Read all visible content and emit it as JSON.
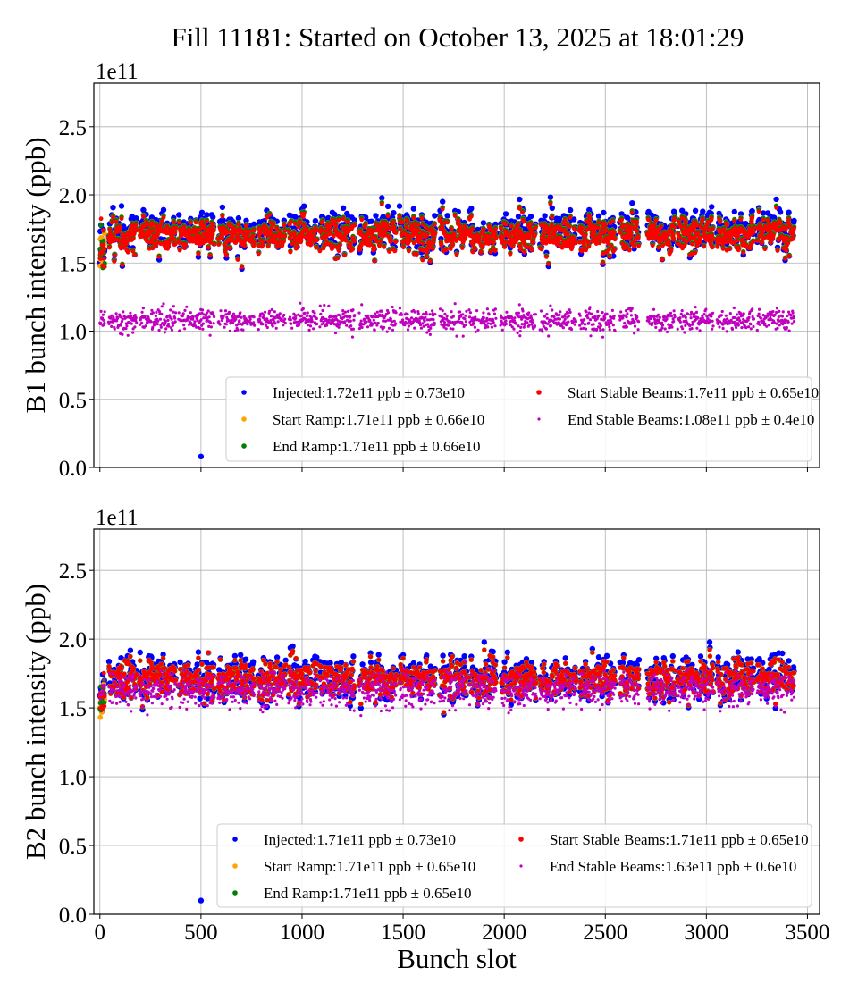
{
  "title": "Fill 11181: Started on October 13, 2025 at 18:01:29",
  "chart_data": [
    {
      "type": "scatter",
      "ylabel": "B1 bunch intensity (ppb)",
      "xlabel": "",
      "y_multiplier": "1e11",
      "xlim": [
        -30,
        3560
      ],
      "ylim": [
        0,
        2.82
      ],
      "xticks": [
        0,
        500,
        1000,
        1500,
        2000,
        2500,
        3000,
        3500
      ],
      "yticks": [
        "0.0",
        "0.5",
        "1.0",
        "1.5",
        "2.0",
        "2.5"
      ],
      "grid": true,
      "legend_placement": "lower-right",
      "filled_slot_ranges": [
        [
          0,
          25
        ],
        [
          43,
          182
        ],
        [
          195,
          375
        ],
        [
          389,
          566
        ],
        [
          584,
          765
        ],
        [
          783,
          920
        ],
        [
          934,
          1075
        ],
        [
          1088,
          1261
        ],
        [
          1283,
          1465
        ],
        [
          1482,
          1659
        ],
        [
          1681,
          1814
        ],
        [
          1827,
          1960
        ],
        [
          1982,
          2159
        ],
        [
          2177,
          2358
        ],
        [
          2372,
          2549
        ],
        [
          2571,
          2668
        ],
        [
          2708,
          2845
        ],
        [
          2858,
          3035
        ],
        [
          3053,
          3235
        ],
        [
          3252,
          3434
        ]
      ],
      "outliers": [
        {
          "series": "Injected",
          "x": 500,
          "y": 0.08
        }
      ],
      "series": [
        {
          "name": "Injected",
          "label": "Injected:1.72e11 ppb ± 0.73e10",
          "mean": 1.72,
          "std": 0.073,
          "color": "#0000ff"
        },
        {
          "name": "Start Ramp",
          "label": "Start Ramp:1.71e11 ppb ± 0.66e10",
          "mean": 1.71,
          "std": 0.066,
          "color": "#ffa500"
        },
        {
          "name": "End Ramp",
          "label": "End Ramp:1.71e11 ppb ± 0.66e10",
          "mean": 1.71,
          "std": 0.066,
          "color": "#008000"
        },
        {
          "name": "Start Stable Beams",
          "label": "Start Stable Beams:1.7e11 ppb ± 0.65e10",
          "mean": 1.7,
          "std": 0.065,
          "color": "#ff0000"
        },
        {
          "name": "End Stable Beams",
          "label": "End Stable Beams:1.08e11 ppb ± 0.4e10",
          "mean": 1.08,
          "std": 0.04,
          "color": "#bf00bf"
        }
      ]
    },
    {
      "type": "scatter",
      "ylabel": "B2 bunch intensity (ppb)",
      "xlabel": "Bunch slot",
      "y_multiplier": "1e11",
      "xlim": [
        -30,
        3560
      ],
      "ylim": [
        0,
        2.8
      ],
      "xticks": [
        0,
        500,
        1000,
        1500,
        2000,
        2500,
        3000,
        3500
      ],
      "yticks": [
        "0.0",
        "0.5",
        "1.0",
        "1.5",
        "2.0",
        "2.5"
      ],
      "grid": true,
      "legend_placement": "lower-right",
      "filled_slot_ranges": [
        [
          0,
          25
        ],
        [
          43,
          182
        ],
        [
          195,
          375
        ],
        [
          389,
          566
        ],
        [
          584,
          765
        ],
        [
          783,
          920
        ],
        [
          934,
          1075
        ],
        [
          1088,
          1261
        ],
        [
          1283,
          1465
        ],
        [
          1482,
          1659
        ],
        [
          1681,
          1814
        ],
        [
          1827,
          1960
        ],
        [
          1982,
          2159
        ],
        [
          2177,
          2358
        ],
        [
          2372,
          2549
        ],
        [
          2571,
          2668
        ],
        [
          2708,
          2845
        ],
        [
          2858,
          3035
        ],
        [
          3053,
          3235
        ],
        [
          3252,
          3434
        ]
      ],
      "outliers": [
        {
          "series": "Injected",
          "x": 500,
          "y": 0.1
        }
      ],
      "series": [
        {
          "name": "Injected",
          "label": "Injected:1.71e11 ppb ± 0.73e10",
          "mean": 1.71,
          "std": 0.073,
          "color": "#0000ff"
        },
        {
          "name": "Start Ramp",
          "label": "Start Ramp:1.71e11 ppb ± 0.65e10",
          "mean": 1.71,
          "std": 0.065,
          "color": "#ffa500"
        },
        {
          "name": "End Ramp",
          "label": "End Ramp:1.71e11 ppb ± 0.65e10",
          "mean": 1.71,
          "std": 0.065,
          "color": "#008000"
        },
        {
          "name": "Start Stable Beams",
          "label": "Start Stable Beams:1.71e11 ppb ± 0.65e10",
          "mean": 1.71,
          "std": 0.065,
          "color": "#ff0000"
        },
        {
          "name": "End Stable Beams",
          "label": "End Stable Beams:1.63e11 ppb ± 0.6e10",
          "mean": 1.63,
          "std": 0.06,
          "color": "#bf00bf"
        }
      ]
    }
  ]
}
